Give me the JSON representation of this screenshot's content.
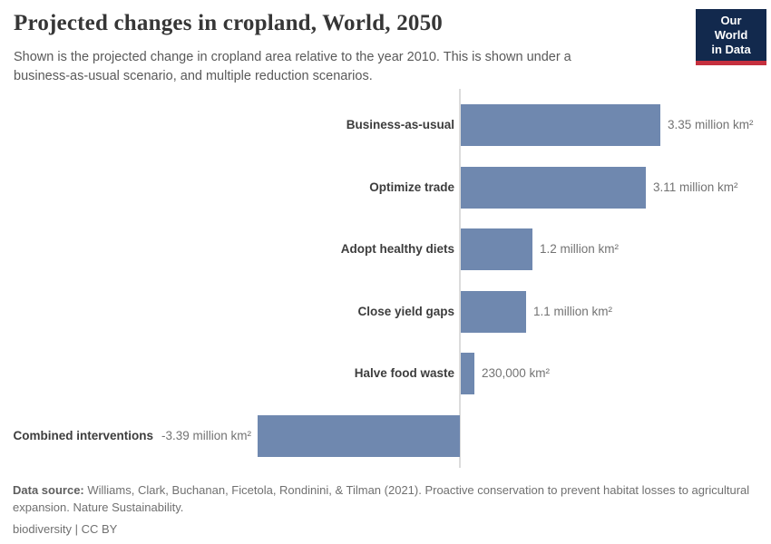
{
  "header": {
    "title": "Projected changes in cropland, World, 2050",
    "subtitle": "Shown is the projected change in cropland area relative to the year 2010. This is shown under a business-as-usual scenario, and multiple reduction scenarios.",
    "logo": {
      "line1": "Our World",
      "line2": "in Data",
      "bg_color": "#12294d",
      "stripe_color": "#c5303e"
    }
  },
  "chart_data": {
    "type": "bar",
    "orientation": "horizontal",
    "title": "Projected changes in cropland, World, 2050",
    "unit": "million km²",
    "baseline": 0,
    "xlim": [
      -3.39,
      3.35
    ],
    "grid": false,
    "legend": "none",
    "categories": [
      "Business-as-usual",
      "Optimize trade",
      "Adopt healthy diets",
      "Close yield gaps",
      "Halve food waste",
      "Combined interventions"
    ],
    "values": [
      3.35,
      3.11,
      1.2,
      1.1,
      0.23,
      -3.39
    ],
    "value_labels": [
      "3.35 million km²",
      "3.11 million km²",
      "1.2 million km²",
      "1.1 million km²",
      "230,000 km²",
      "-3.39 million km²"
    ],
    "bar_color": "#6f88af"
  },
  "footer": {
    "source_label": "Data source:",
    "source_text": " Williams, Clark, Buchanan, Ficetola, Rondinini, & Tilman (2021). Proactive conservation to prevent habitat losses to agricultural expansion. Nature Sustainability.",
    "license": "biodiversity | CC BY"
  }
}
